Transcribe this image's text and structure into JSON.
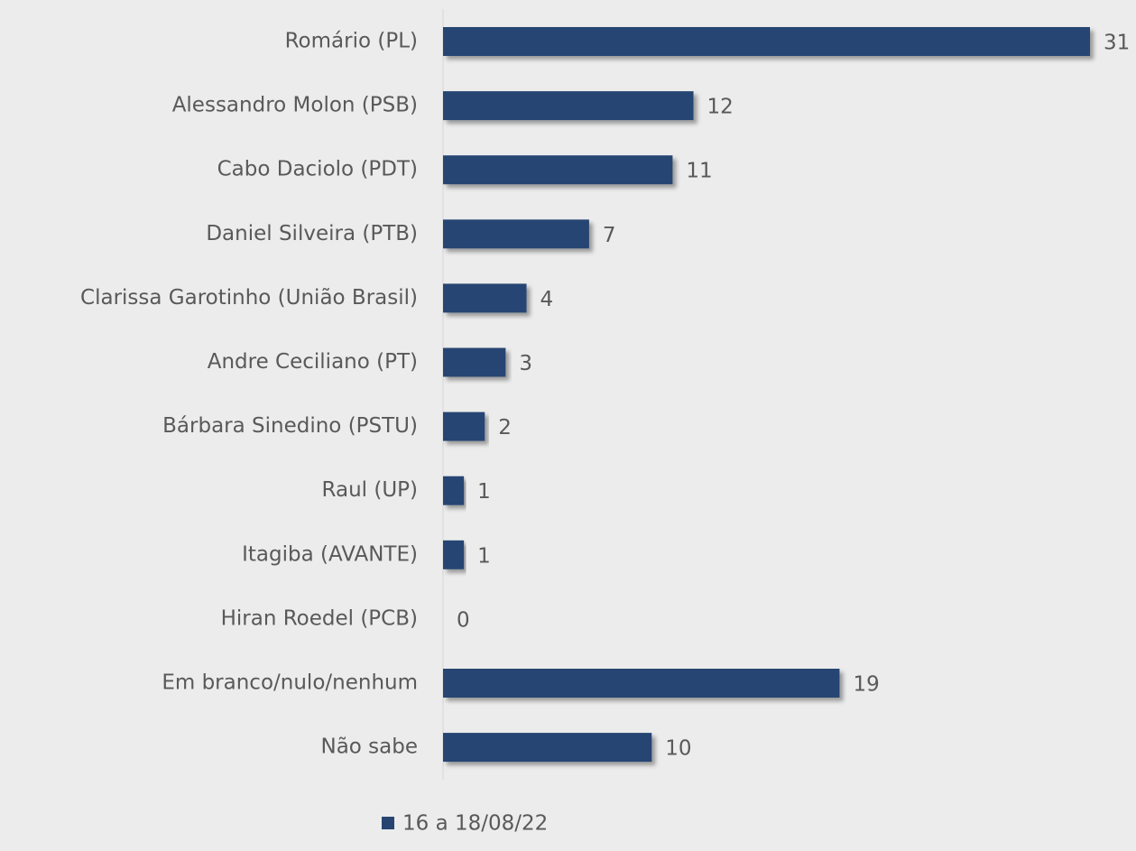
{
  "chart_data": {
    "type": "bar",
    "orientation": "horizontal",
    "categories": [
      "Romário (PL)",
      "Alessandro Molon (PSB)",
      "Cabo Daciolo (PDT)",
      "Daniel Silveira (PTB)",
      "Clarissa Garotinho (União Brasil)",
      "Andre Ceciliano (PT)",
      "Bárbara Sinedino (PSTU)",
      "Raul (UP)",
      "Itagiba (AVANTE)",
      "Hiran Roedel (PCB)",
      "Em branco/nulo/nenhum",
      "Não sabe"
    ],
    "series": [
      {
        "name": "16 a 18/08/22",
        "color": "#284572",
        "values": [
          31,
          12,
          11,
          7,
          4,
          3,
          2,
          1,
          1,
          0,
          19,
          10
        ]
      }
    ],
    "legend": "bottom"
  }
}
